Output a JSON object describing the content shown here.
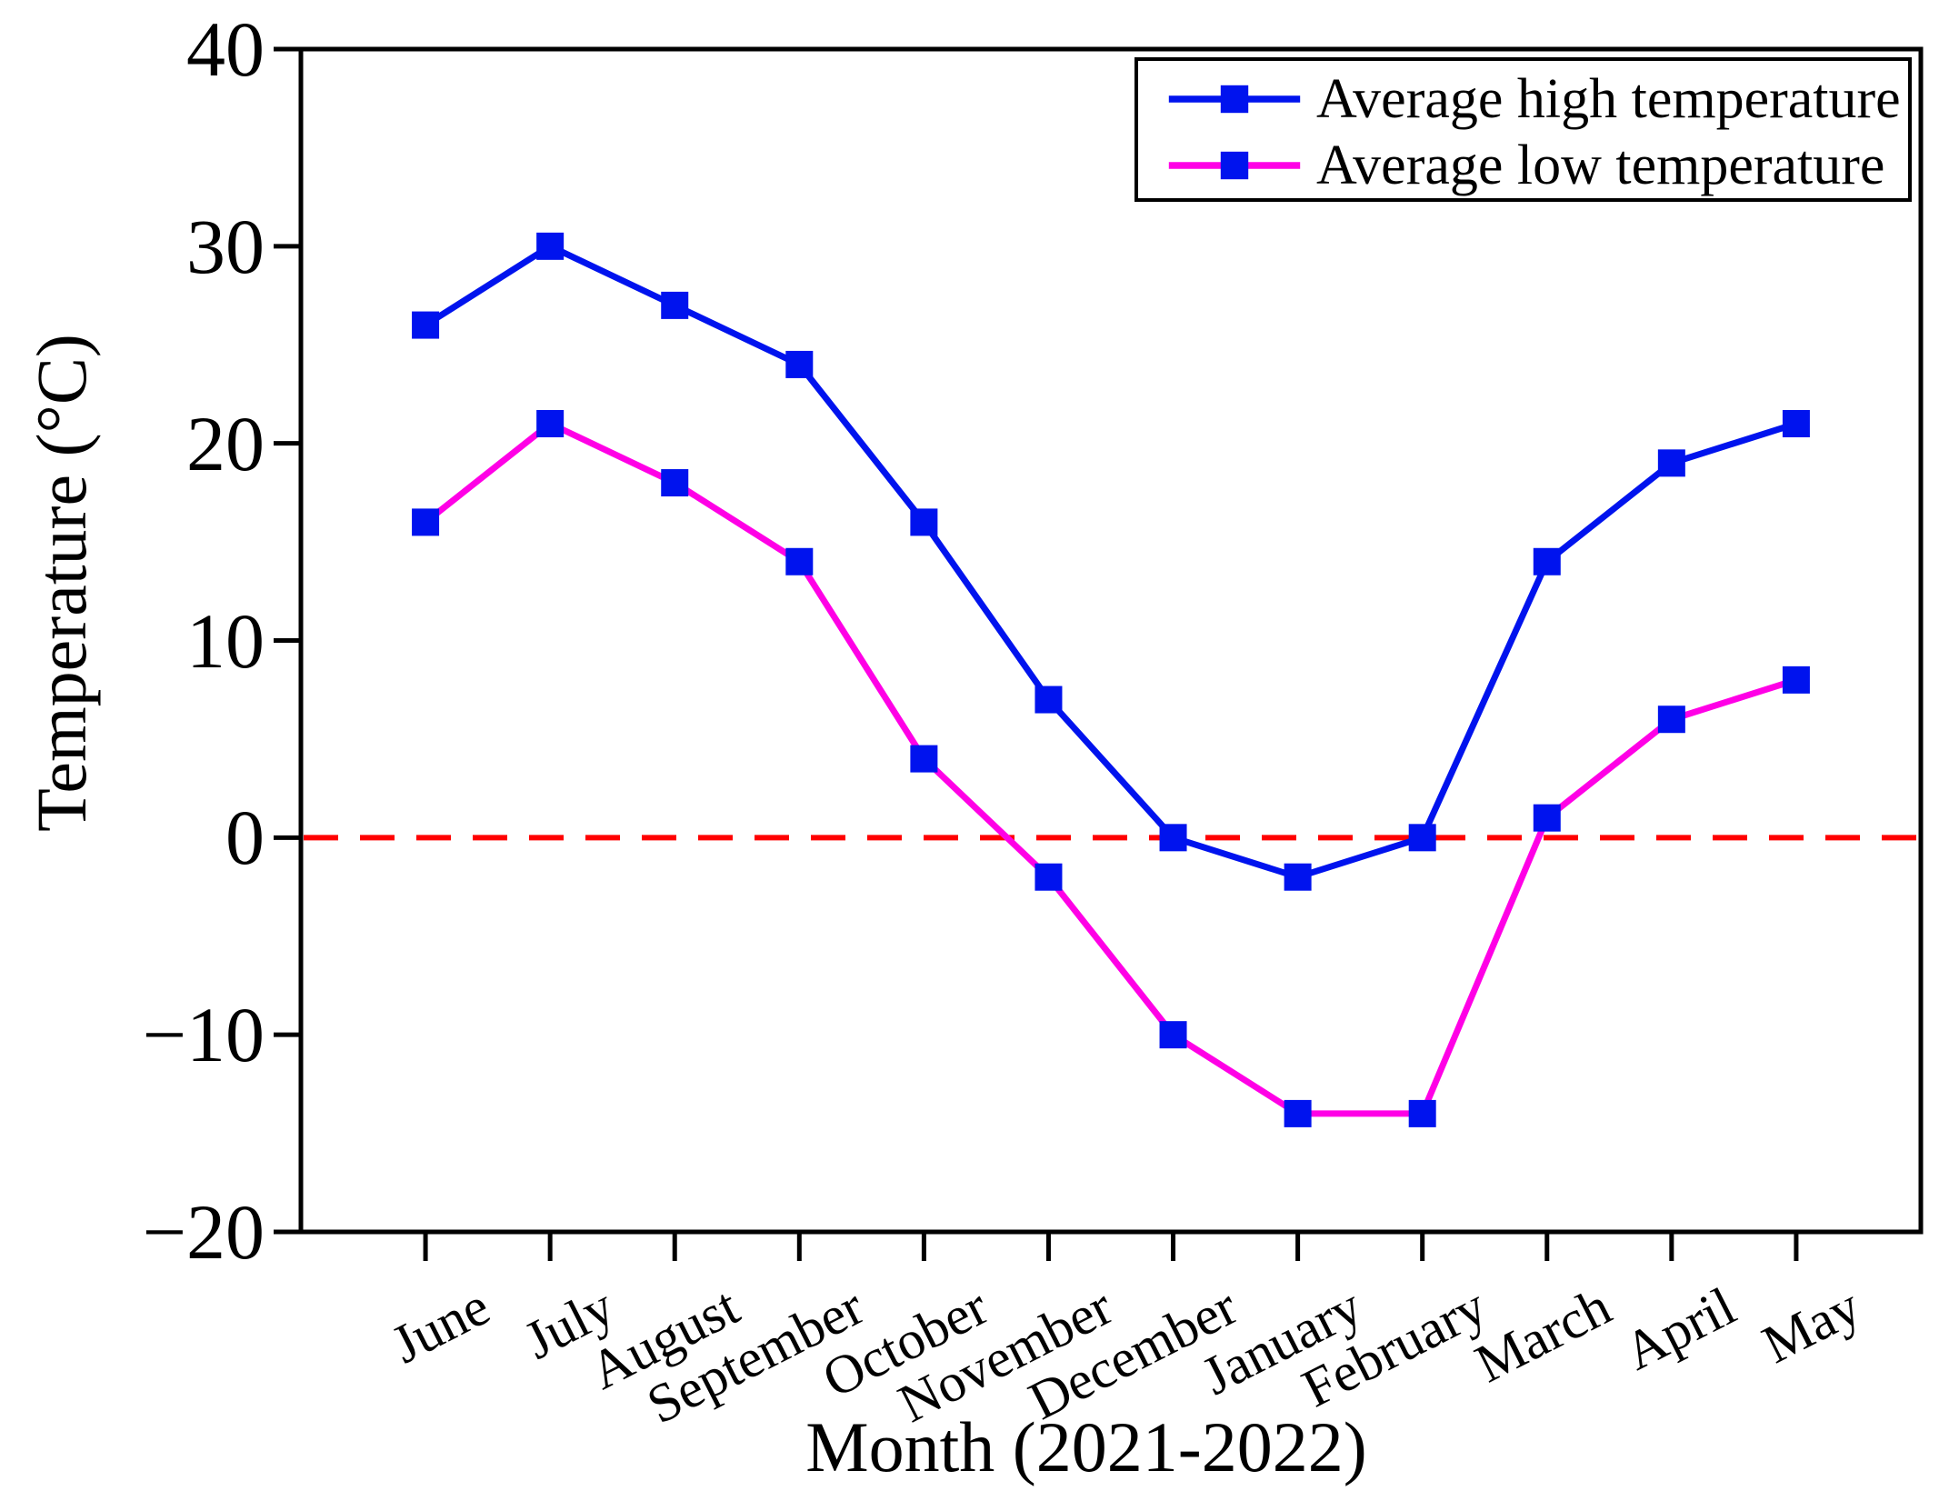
{
  "chart_data": {
    "type": "line",
    "title": "",
    "xlabel": "Month (2021-2022)",
    "ylabel": "Temperature (°C)",
    "categories": [
      "June",
      "July",
      "August",
      "September",
      "October",
      "November",
      "December",
      "January",
      "February",
      "March",
      "April",
      "May"
    ],
    "series": [
      {
        "name": "Average high temperature",
        "color": "#0013ee",
        "marker": "square",
        "marker_color": "#0013ee",
        "values": [
          26,
          30,
          27,
          24,
          16,
          7,
          0,
          -2,
          0,
          14,
          19,
          21
        ]
      },
      {
        "name": "Average low temperature",
        "color": "#ff00e6",
        "marker": "square",
        "marker_color": "#0013ee",
        "values": [
          16,
          21,
          18,
          14,
          4,
          -2,
          -10,
          -14,
          -14,
          1,
          6,
          8
        ]
      }
    ],
    "ylim": [
      -20,
      40
    ],
    "yticks": [
      -20,
      -10,
      0,
      10,
      20,
      30,
      40
    ],
    "zero_line": {
      "value": 0,
      "color": "#ff0000",
      "style": "dashed"
    },
    "grid": false,
    "legend_position": "top-right",
    "axis_color": "#000000",
    "background": "#ffffff"
  }
}
